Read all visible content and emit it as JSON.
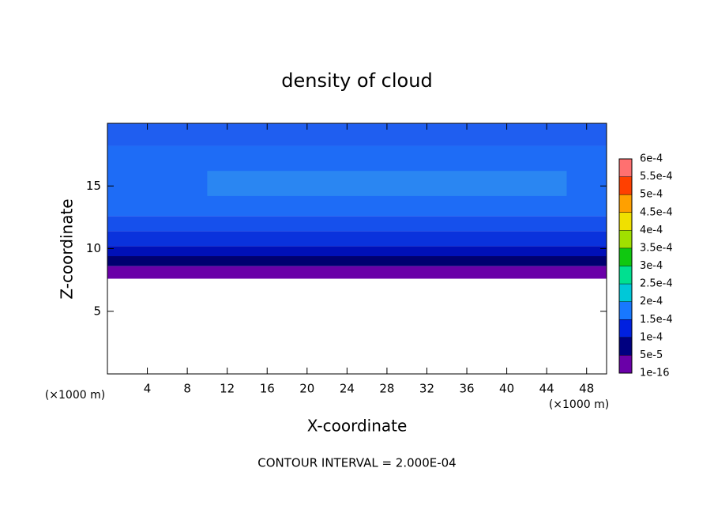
{
  "chart_data": {
    "type": "contour",
    "title": "density of cloud",
    "x_label": "X-coordinate",
    "y_label": "Z-coordinate",
    "x_unit_label": "(×1000 m)",
    "y_unit_label": "(×1000 m)",
    "annotation": "CONTOUR INTERVAL = 2.000E-04",
    "xlim": [
      0,
      50
    ],
    "ylim": [
      0,
      20
    ],
    "xticks": [
      4,
      8,
      12,
      16,
      20,
      24,
      28,
      32,
      36,
      40,
      44,
      48
    ],
    "yticks": [
      5,
      10,
      15
    ],
    "field": [
      {
        "x": [
          0,
          50
        ],
        "z": [
          18.2,
          20
        ],
        "value": 0.00012,
        "color": "#1f5ef0"
      },
      {
        "x": [
          0,
          50
        ],
        "z": [
          12.6,
          18.2
        ],
        "value": 0.00013,
        "color": "#1e6cf6"
      },
      {
        "x": [
          10,
          46
        ],
        "z": [
          14.2,
          16.2
        ],
        "value": 0.00015,
        "color": "#2a86f2"
      },
      {
        "x": [
          0,
          50
        ],
        "z": [
          11.4,
          12.6
        ],
        "value": 0.00011,
        "color": "#1650ec"
      },
      {
        "x": [
          0,
          50
        ],
        "z": [
          10.2,
          11.4
        ],
        "value": 0.0001,
        "color": "#0a32dc"
      },
      {
        "x": [
          0,
          50
        ],
        "z": [
          9.4,
          10.2
        ],
        "value": 8e-05,
        "color": "#0010b8"
      },
      {
        "x": [
          0,
          50
        ],
        "z": [
          8.6,
          9.4
        ],
        "value": 5e-05,
        "color": "#000070"
      },
      {
        "x": [
          0,
          50
        ],
        "z": [
          7.6,
          8.6
        ],
        "value": 2e-05,
        "color": "#6a00a8"
      }
    ],
    "colorbar": {
      "levels": [
        {
          "value": 1e-16,
          "label": "1e-16"
        },
        {
          "value": 5e-05,
          "label": "5e-5"
        },
        {
          "value": 0.0001,
          "label": "1e-4"
        },
        {
          "value": 0.00015,
          "label": "1.5e-4"
        },
        {
          "value": 0.0002,
          "label": "2e-4"
        },
        {
          "value": 0.00025,
          "label": "2.5e-4"
        },
        {
          "value": 0.0003,
          "label": "3e-4"
        },
        {
          "value": 0.00035,
          "label": "3.5e-4"
        },
        {
          "value": 0.0004,
          "label": "4e-4"
        },
        {
          "value": 0.00045,
          "label": "4.5e-4"
        },
        {
          "value": 0.0005,
          "label": "5e-4"
        },
        {
          "value": 0.00055,
          "label": "5.5e-4"
        },
        {
          "value": 0.0006,
          "label": "6e-4"
        }
      ],
      "colors": [
        "#6a00a8",
        "#000080",
        "#0020e0",
        "#1878ff",
        "#00c8d8",
        "#00e090",
        "#10c810",
        "#a0e000",
        "#f0e000",
        "#ffa000",
        "#ff4000",
        "#ff7070"
      ]
    }
  }
}
